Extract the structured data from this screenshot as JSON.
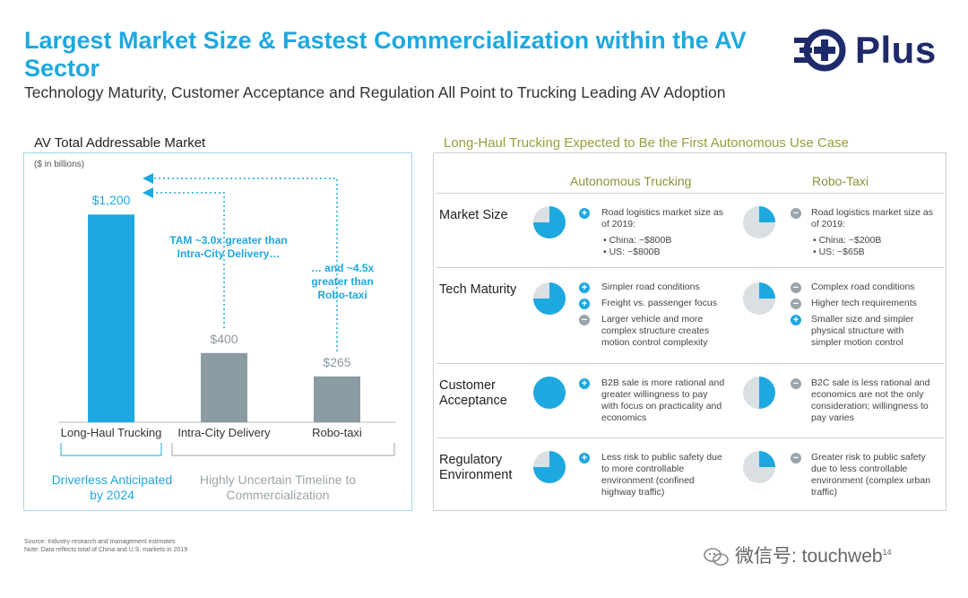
{
  "header": {
    "title": "Largest Market Size & Fastest Commercialization within the AV Sector",
    "subtitle": "Technology Maturity, Customer Acceptance and Regulation All Point to Trucking Leading AV Adoption",
    "logo_text": "Plus"
  },
  "left": {
    "title": "AV Total Addressable Market",
    "units": "($ in billions)",
    "annotation_1": "TAM ~3.0x greater than Intra-City Delivery…",
    "annotation_2": "… and ~4.5x greater than Robo-taxi",
    "note_blue": "Driverless Anticipated by 2024",
    "note_gray": "Highly Uncertain Timeline to Commercialization"
  },
  "chart_data": {
    "type": "bar",
    "title": "AV Total Addressable Market",
    "ylabel": "($ in billions)",
    "categories": [
      "Long-Haul Trucking",
      "Intra-City Delivery",
      "Robo-taxi"
    ],
    "values": [
      1200,
      400,
      265
    ],
    "value_labels": [
      "$1,200",
      "$400",
      "$265"
    ],
    "colors": [
      "#1ea8e0",
      "#8a9ba2",
      "#8a9ba2"
    ],
    "ylim": [
      0,
      1300
    ]
  },
  "right": {
    "title": "Long-Haul Trucking Expected to Be the First Autonomous Use Case",
    "col_trucking": "Autonomous Trucking",
    "col_robotaxi": "Robo-Taxi",
    "rows": [
      {
        "label": "Market Size",
        "truck_share": 0.75,
        "taxi_share": 0.25,
        "truck_bullets": [
          {
            "sign": "+",
            "text": "Road logistics market size as of 2019:"
          },
          {
            "sign": "",
            "text": "• China: ~$800B"
          },
          {
            "sign": "",
            "text": "• US: ~$800B"
          }
        ],
        "taxi_bullets": [
          {
            "sign": "-",
            "text": "Road logistics market size as of 2019:"
          },
          {
            "sign": "",
            "text": "• China: ~$200B"
          },
          {
            "sign": "",
            "text": "• US: ~$65B"
          }
        ]
      },
      {
        "label": "Tech Maturity",
        "truck_share": 0.75,
        "taxi_share": 0.25,
        "truck_bullets": [
          {
            "sign": "+",
            "text": "Simpler road conditions"
          },
          {
            "sign": "+",
            "text": "Freight vs. passenger focus"
          },
          {
            "sign": "-",
            "text": "Larger vehicle and more complex structure creates motion control complexity"
          }
        ],
        "taxi_bullets": [
          {
            "sign": "-",
            "text": "Complex road conditions"
          },
          {
            "sign": "-",
            "text": "Higher tech requirements"
          },
          {
            "sign": "+",
            "text": "Smaller size and simpler physical structure with simpler motion control"
          }
        ]
      },
      {
        "label": "Customer Acceptance",
        "truck_share": 1.0,
        "taxi_share": 0.5,
        "truck_bullets": [
          {
            "sign": "+",
            "text": "B2B sale is more rational and greater willingness to pay with focus on practicality and economics"
          }
        ],
        "taxi_bullets": [
          {
            "sign": "-",
            "text": "B2C sale is less rational and economics are not the only consideration; willingness to pay varies"
          }
        ]
      },
      {
        "label": "Regulatory Environment",
        "truck_share": 0.75,
        "taxi_share": 0.25,
        "truck_bullets": [
          {
            "sign": "+",
            "text": "Less risk to public safety due to more controllable environment (confined highway traffic)"
          }
        ],
        "taxi_bullets": [
          {
            "sign": "-",
            "text": "Greater risk to public safety due to less controllable environment (complex urban traffic)"
          }
        ]
      }
    ]
  },
  "footnotes": {
    "source": "Source: Industry research and management estimates",
    "note": "Note: Data reflects total of China and U.S. markets in 2019"
  },
  "watermark": {
    "text": "微信号: touchweb",
    "superscript": "14"
  },
  "colors": {
    "accent": "#1ea8e0",
    "gray_bar": "#8a9ba2",
    "olive_heading": "#9a9d3c",
    "navy_logo": "#1e2a6b"
  }
}
